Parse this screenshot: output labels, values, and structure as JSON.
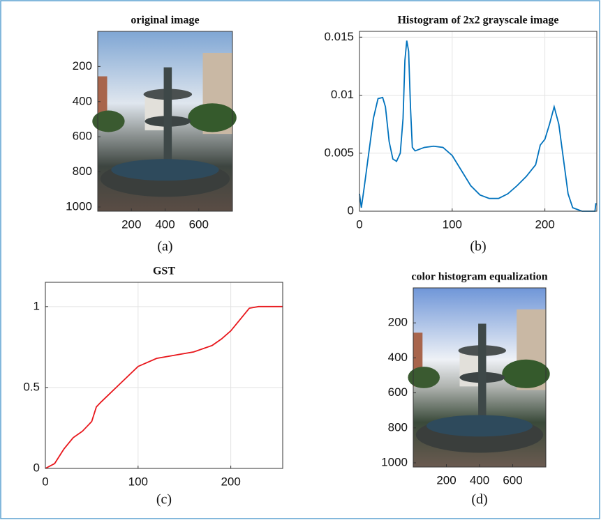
{
  "chart_data": [
    {
      "type": "image",
      "title": "original image",
      "caption": "(a)",
      "xlim": [
        0,
        800
      ],
      "xticks": [
        200,
        400,
        600
      ],
      "ylim": [
        0,
        1024
      ],
      "yticks": [
        200,
        400,
        600,
        800,
        1000
      ]
    },
    {
      "type": "line",
      "title": "Histogram of 2x2 grayscale image",
      "caption": "(b)",
      "color": "#0072bd",
      "grid": true,
      "xlim": [
        0,
        256
      ],
      "xticks": [
        0,
        100,
        200
      ],
      "ylim": [
        0,
        0.0155
      ],
      "yticks": [
        0,
        0.005,
        0.01,
        0.015
      ],
      "x": [
        0,
        2,
        5,
        10,
        15,
        20,
        25,
        28,
        32,
        36,
        40,
        44,
        47,
        49,
        51,
        53,
        55,
        57,
        60,
        70,
        80,
        90,
        100,
        110,
        120,
        130,
        140,
        150,
        160,
        170,
        180,
        190,
        195,
        200,
        205,
        210,
        215,
        220,
        225,
        230,
        240,
        250,
        254,
        255
      ],
      "values": [
        0.0015,
        0.0003,
        0.002,
        0.005,
        0.008,
        0.0097,
        0.0098,
        0.009,
        0.006,
        0.0045,
        0.0043,
        0.005,
        0.008,
        0.013,
        0.0147,
        0.0138,
        0.009,
        0.0055,
        0.0052,
        0.0055,
        0.0056,
        0.0055,
        0.0048,
        0.0035,
        0.0022,
        0.0014,
        0.0011,
        0.0011,
        0.0015,
        0.0022,
        0.003,
        0.004,
        0.0057,
        0.0062,
        0.0075,
        0.009,
        0.0075,
        0.0045,
        0.0015,
        0.0003,
        0,
        0,
        0,
        0.0007
      ]
    },
    {
      "type": "line",
      "title": "GST",
      "caption": "(c)",
      "color": "#e8161b",
      "grid": true,
      "xlim": [
        0,
        256
      ],
      "xticks": [
        0,
        100,
        200
      ],
      "ylim": [
        0,
        1.15
      ],
      "yticks": [
        0,
        0.5,
        1
      ],
      "x": [
        0,
        10,
        20,
        30,
        40,
        50,
        55,
        60,
        80,
        100,
        120,
        140,
        160,
        180,
        190,
        200,
        210,
        220,
        230,
        256
      ],
      "values": [
        0,
        0.03,
        0.12,
        0.19,
        0.23,
        0.29,
        0.38,
        0.41,
        0.52,
        0.63,
        0.68,
        0.7,
        0.72,
        0.76,
        0.8,
        0.85,
        0.92,
        0.99,
        1,
        1
      ]
    },
    {
      "type": "image",
      "title": "color histogram equalization",
      "caption": "(d)",
      "xlim": [
        0,
        800
      ],
      "xticks": [
        200,
        400,
        600
      ],
      "ylim": [
        0,
        1024
      ],
      "yticks": [
        200,
        400,
        600,
        800,
        1000
      ]
    }
  ]
}
